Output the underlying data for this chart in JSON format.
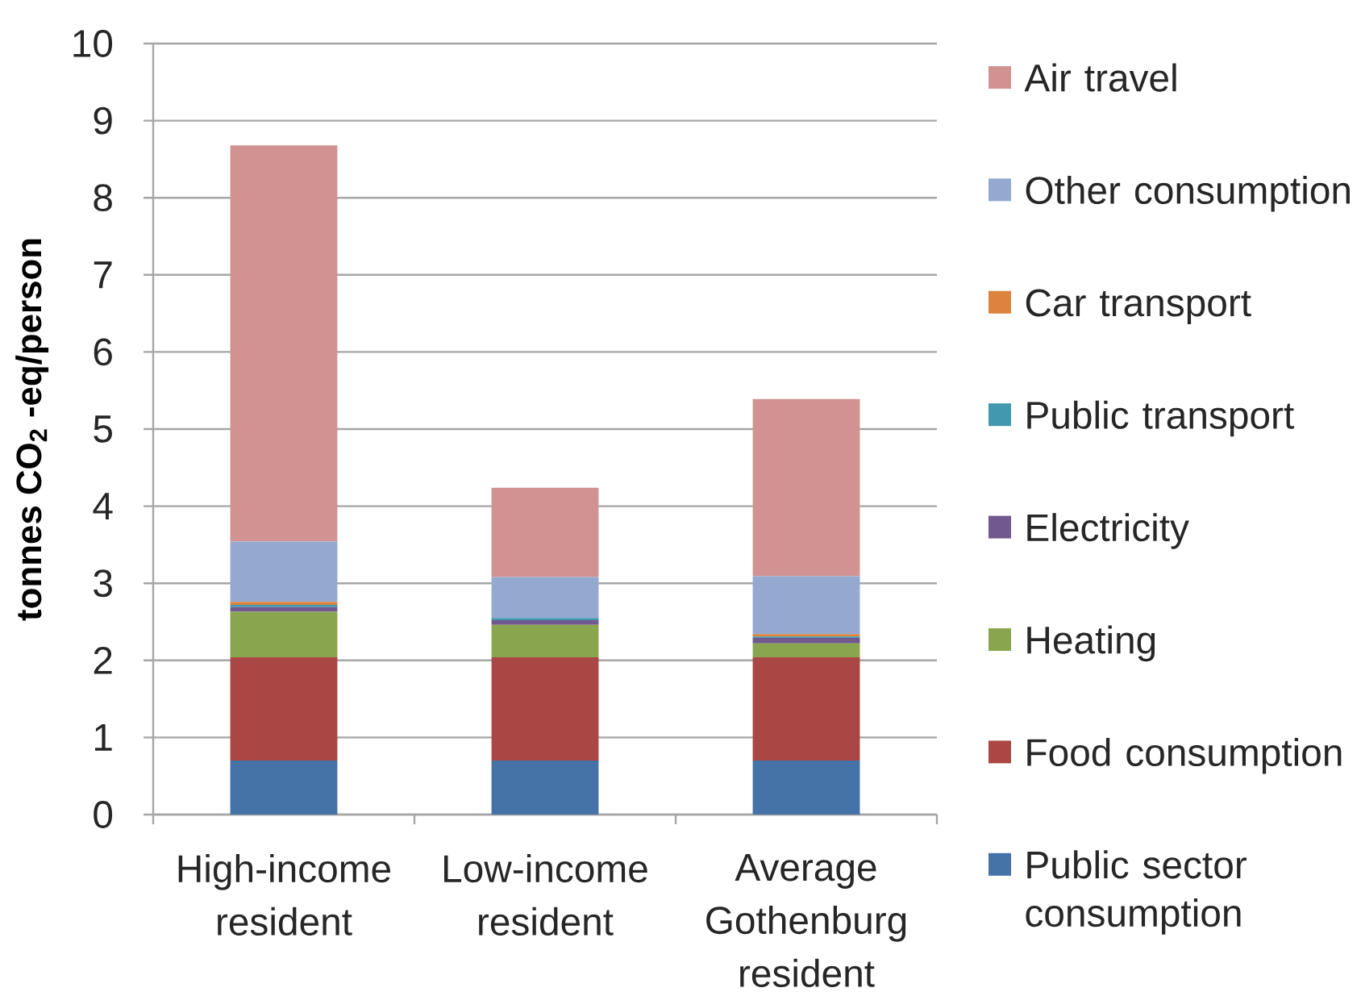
{
  "chart_data": {
    "type": "bar",
    "stacked": true,
    "ylabel": "tonnes CO$_{2}$ -eq/person",
    "categories": [
      "High-income resident",
      "Low-income resident",
      "Average Gothenburg resident"
    ],
    "series": [
      {
        "name": "Public sector consumption",
        "color": "#4572a7",
        "values": [
          0.7,
          0.7,
          0.7
        ]
      },
      {
        "name": "Food consumption",
        "color": "#aa4643",
        "values": [
          1.34,
          1.34,
          1.34
        ]
      },
      {
        "name": "Heating",
        "color": "#89a54e",
        "values": [
          0.59,
          0.42,
          0.18
        ]
      },
      {
        "name": "Electricity",
        "color": "#71588f",
        "values": [
          0.06,
          0.06,
          0.07
        ]
      },
      {
        "name": "Public transport",
        "color": "#4198af",
        "values": [
          0.03,
          0.03,
          0.02
        ]
      },
      {
        "name": "Car transport",
        "color": "#db843d",
        "values": [
          0.04,
          0,
          0.03
        ]
      },
      {
        "name": "Other consumption",
        "color": "#93a9cf",
        "values": [
          0.78,
          0.53,
          0.75
        ]
      },
      {
        "name": "Air travel",
        "color": "#d19392",
        "values": [
          5.14,
          1.16,
          2.3
        ]
      }
    ],
    "ylim": [
      0,
      10
    ],
    "yticks": [
      0,
      1,
      2,
      3,
      4,
      5,
      6,
      7,
      8,
      9,
      10
    ],
    "grid": "y",
    "legend": "right"
  }
}
